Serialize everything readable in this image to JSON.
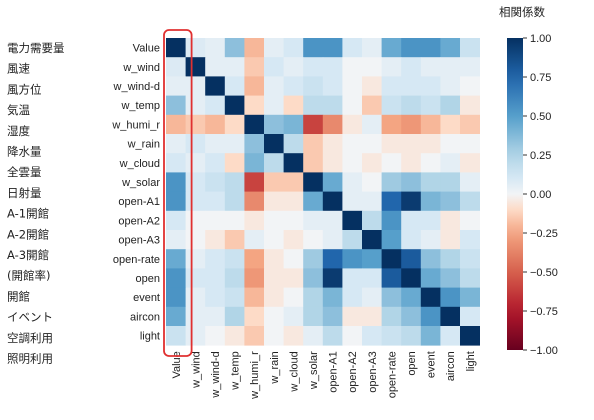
{
  "chart_data": {
    "type": "heatmap",
    "variables": [
      "Value",
      "w_wind",
      "w_wind-d",
      "w_temp",
      "w_humi_r",
      "w_rain",
      "w_cloud",
      "w_solar",
      "open-A1",
      "open-A2",
      "open-A3",
      "open-rate",
      "open",
      "event",
      "aircon",
      "light"
    ],
    "jp_labels": [
      "電力需要量",
      "風速",
      "風方位",
      "気温",
      "湿度",
      "降水量",
      "全雲量",
      "日射量",
      "A-1開館",
      "A-2開館",
      "A-3開館",
      "(開館率)",
      "開館",
      "イベント",
      "空調利用",
      "照明利用"
    ],
    "colorbar": {
      "title": "相関係数",
      "ticks": [
        "1.00",
        "0.75",
        "0.50",
        "0.25",
        "0.00",
        "−0.25",
        "−0.50",
        "−0.75",
        "−1.00"
      ],
      "range": [
        -1,
        1
      ]
    },
    "matrix": [
      [
        1.0,
        0.08,
        0.05,
        0.35,
        -0.2,
        0.05,
        0.1,
        0.55,
        0.55,
        0.1,
        0.05,
        0.45,
        0.55,
        0.55,
        0.45,
        0.15
      ],
      [
        0.08,
        1.0,
        0.05,
        0.05,
        -0.15,
        0.1,
        0.05,
        0.1,
        0.1,
        0.0,
        0.0,
        0.05,
        0.1,
        0.05,
        0.05,
        0.05
      ],
      [
        0.05,
        0.05,
        1.0,
        0.1,
        -0.2,
        0.05,
        0.1,
        0.15,
        0.1,
        0.0,
        -0.05,
        0.1,
        0.1,
        0.1,
        0.05,
        0.0
      ],
      [
        0.35,
        0.05,
        0.1,
        1.0,
        -0.1,
        0.05,
        -0.1,
        0.2,
        0.2,
        0.0,
        -0.15,
        0.15,
        0.2,
        0.15,
        0.25,
        -0.05
      ],
      [
        -0.2,
        -0.15,
        -0.2,
        -0.1,
        1.0,
        0.35,
        0.4,
        -0.6,
        -0.35,
        -0.05,
        0.05,
        -0.25,
        -0.3,
        -0.2,
        -0.1,
        -0.15
      ],
      [
        0.05,
        0.1,
        0.05,
        0.05,
        0.35,
        1.0,
        0.2,
        -0.15,
        -0.05,
        0.0,
        0.0,
        -0.05,
        -0.05,
        -0.05,
        0.0,
        0.0
      ],
      [
        0.1,
        0.05,
        0.1,
        -0.1,
        0.4,
        0.2,
        1.0,
        -0.15,
        -0.05,
        0.0,
        -0.05,
        0.0,
        -0.05,
        0.0,
        0.05,
        -0.05
      ],
      [
        0.55,
        0.1,
        0.15,
        0.2,
        -0.6,
        -0.15,
        -0.15,
        1.0,
        0.45,
        0.05,
        0.0,
        0.3,
        0.35,
        0.25,
        0.25,
        0.05
      ],
      [
        0.55,
        0.1,
        0.1,
        0.2,
        -0.35,
        -0.05,
        -0.05,
        0.45,
        1.0,
        0.05,
        0.05,
        0.75,
        0.95,
        0.4,
        0.35,
        0.2
      ],
      [
        0.1,
        0.0,
        0.0,
        0.0,
        -0.05,
        0.0,
        0.0,
        0.05,
        0.05,
        1.0,
        0.2,
        0.55,
        0.1,
        0.1,
        -0.05,
        0.0
      ],
      [
        0.05,
        0.0,
        -0.05,
        -0.15,
        0.05,
        0.0,
        -0.05,
        0.0,
        0.05,
        0.2,
        1.0,
        0.5,
        0.1,
        0.05,
        -0.05,
        0.1
      ],
      [
        0.45,
        0.05,
        0.1,
        0.15,
        -0.25,
        -0.05,
        0.0,
        0.3,
        0.75,
        0.55,
        0.5,
        1.0,
        0.8,
        0.35,
        0.25,
        0.15
      ],
      [
        0.55,
        0.1,
        0.1,
        0.2,
        -0.3,
        -0.05,
        -0.05,
        0.35,
        0.95,
        0.1,
        0.1,
        0.8,
        1.0,
        0.45,
        0.35,
        0.2
      ],
      [
        0.55,
        0.05,
        0.1,
        0.15,
        -0.2,
        -0.05,
        0.0,
        0.25,
        0.4,
        0.1,
        0.05,
        0.35,
        0.45,
        1.0,
        0.55,
        0.4
      ],
      [
        0.45,
        0.05,
        0.05,
        0.25,
        -0.1,
        0.0,
        0.05,
        0.25,
        0.35,
        -0.05,
        -0.05,
        0.25,
        0.35,
        0.55,
        1.0,
        0.1
      ],
      [
        0.15,
        0.05,
        0.0,
        -0.05,
        -0.15,
        0.0,
        -0.05,
        0.05,
        0.2,
        0.0,
        0.1,
        0.15,
        0.2,
        0.4,
        0.1,
        1.0
      ]
    ],
    "highlight": {
      "column": "Value",
      "color": "#e03030"
    }
  }
}
